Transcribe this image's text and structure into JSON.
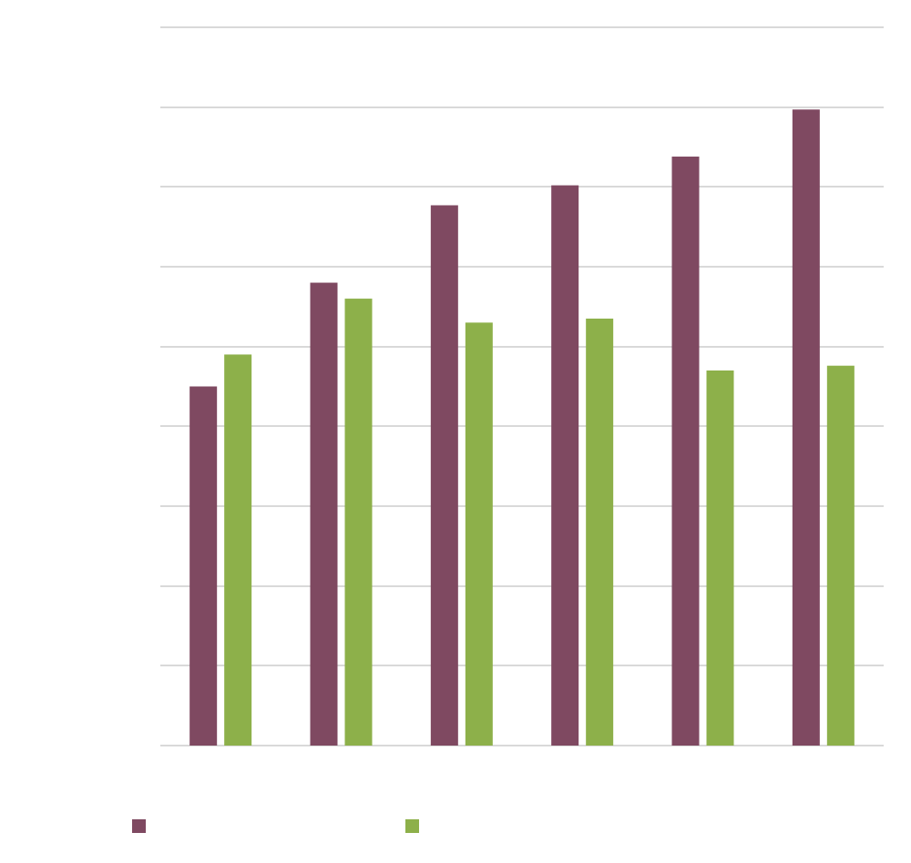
{
  "chart_data": {
    "type": "bar",
    "categories": [
      "",
      "",
      "",
      "",
      "",
      ""
    ],
    "series": [
      {
        "values": [
          45,
          58,
          67.7,
          70.2,
          73.8,
          79.7
        ],
        "color": "#7f4961"
      },
      {
        "values": [
          49,
          56,
          53,
          53.5,
          47,
          47.6
        ],
        "color": "#8db04a"
      }
    ],
    "ylim": [
      0,
      90
    ],
    "ytick_step": 10,
    "grid": true,
    "legend": "bottom-left",
    "title": "",
    "xlabel": "",
    "ylabel": ""
  }
}
